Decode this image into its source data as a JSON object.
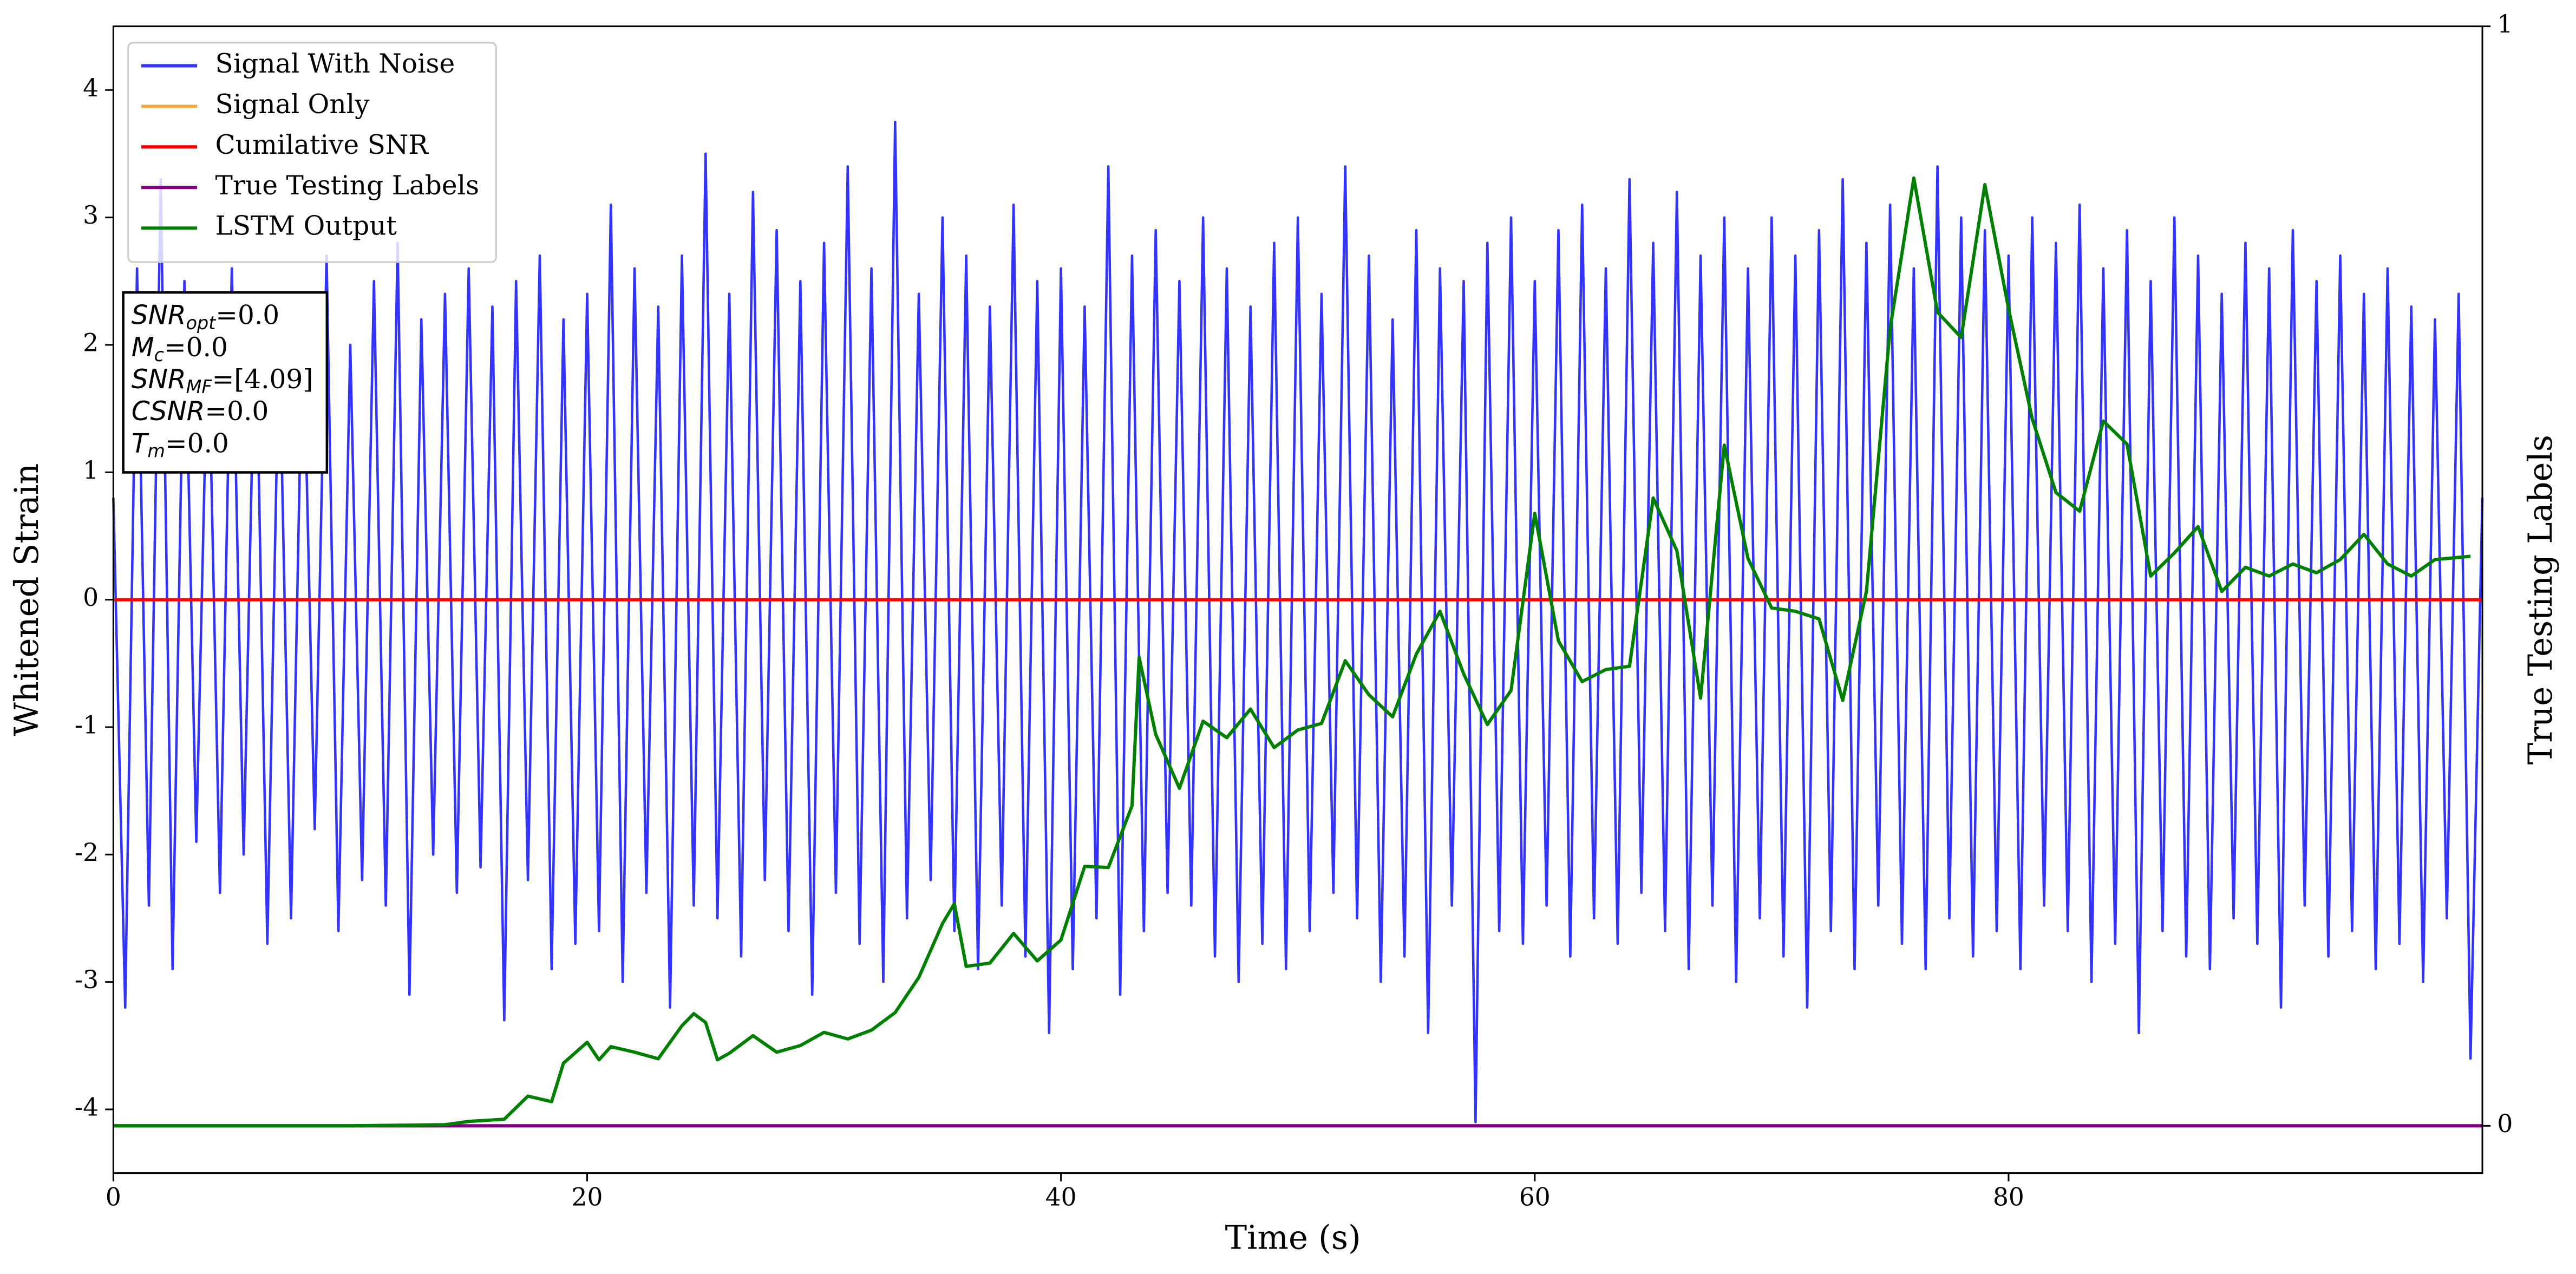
{
  "chart_data": {
    "type": "line",
    "xlabel": "Time (s)",
    "ylabel": "Whitened Strain",
    "y2label": "True Testing Labels",
    "xlim": [
      0,
      100
    ],
    "ylim": [
      -4.5,
      4.5
    ],
    "y2lim": [
      -0.043,
      1
    ],
    "xticks": [
      0,
      20,
      40,
      60,
      80
    ],
    "yticks": [
      -4,
      -3,
      -2,
      -1,
      0,
      1,
      2,
      3,
      4
    ],
    "y2ticks": [
      0,
      1
    ],
    "legend": "upper left",
    "series": [
      {
        "name": "Signal With Noise",
        "color": "#3333ff",
        "x": [
          0,
          0.5,
          1,
          1.5,
          2,
          2.5,
          3,
          3.5,
          4,
          4.5,
          5,
          5.5,
          6,
          6.5,
          7,
          7.5,
          8,
          8.5,
          9,
          9.5,
          10,
          10.5,
          11,
          11.5,
          12,
          12.5,
          13,
          13.5,
          14,
          14.5,
          15,
          15.5,
          16,
          16.5,
          17,
          17.5,
          18,
          18.5,
          19,
          19.5,
          20,
          20.5,
          21,
          21.5,
          22,
          22.5,
          23,
          23.5,
          24,
          24.5,
          25,
          25.5,
          26,
          26.5,
          27,
          27.5,
          28,
          28.5,
          29,
          29.5,
          30,
          30.5,
          31,
          31.5,
          32,
          32.5,
          33,
          33.5,
          34,
          34.5,
          35,
          35.5,
          36,
          36.5,
          37,
          37.5,
          38,
          38.5,
          39,
          39.5,
          40,
          40.5,
          41,
          41.5,
          42,
          42.5,
          43,
          43.5,
          44,
          44.5,
          45,
          45.5,
          46,
          46.5,
          47,
          47.5,
          48,
          48.5,
          49,
          49.5,
          50,
          50.5,
          51,
          51.5,
          52,
          52.5,
          53,
          53.5,
          54,
          54.5,
          55,
          55.5,
          56,
          56.5,
          57,
          57.5,
          58,
          58.5,
          59,
          59.5,
          60,
          60.5,
          61,
          61.5,
          62,
          62.5,
          63,
          63.5,
          64,
          64.5,
          65,
          65.5,
          66,
          66.5,
          67,
          67.5,
          68,
          68.5,
          69,
          69.5,
          70,
          70.5,
          71,
          71.5,
          72,
          72.5,
          73,
          73.5,
          74,
          74.5,
          75,
          75.5,
          76,
          76.5,
          77,
          77.5,
          78,
          78.5,
          79,
          79.5,
          80,
          80.5,
          81,
          81.5,
          82,
          82.5,
          83,
          83.5,
          84,
          84.5,
          85,
          85.5,
          86,
          86.5,
          87,
          87.5,
          88,
          88.5,
          89,
          89.5,
          90,
          90.5,
          91,
          91.5,
          92,
          92.5,
          93,
          93.5,
          94,
          94.5,
          95,
          95.5,
          96,
          96.5,
          97,
          97.5,
          98,
          98.5,
          99,
          99.5,
          100
        ],
        "values": [
          0.8,
          -3.2,
          2.6,
          -2.4,
          3.3,
          -2.9,
          2.5,
          -1.9,
          2.2,
          -2.3,
          2.6,
          -2.0,
          2.4,
          -2.7,
          2.1,
          -2.5,
          2.3,
          -1.8,
          2.7,
          -2.6,
          2.0,
          -2.2,
          2.5,
          -2.4,
          2.8,
          -3.1,
          2.2,
          -2.0,
          2.4,
          -2.3,
          2.6,
          -2.1,
          2.3,
          -3.3,
          2.5,
          -2.2,
          2.7,
          -2.9,
          2.2,
          -2.7,
          2.4,
          -2.6,
          3.1,
          -3.0,
          2.6,
          -2.3,
          2.3,
          -3.2,
          2.7,
          -2.4,
          3.5,
          -2.5,
          2.4,
          -2.8,
          3.2,
          -2.2,
          2.9,
          -2.6,
          2.5,
          -3.1,
          2.8,
          -2.3,
          3.4,
          -2.7,
          2.6,
          -3.0,
          3.75,
          -2.5,
          2.4,
          -2.2,
          3.0,
          -2.6,
          2.7,
          -2.9,
          2.3,
          -2.4,
          3.1,
          -2.8,
          2.5,
          -3.4,
          2.6,
          -2.9,
          2.3,
          -2.5,
          3.4,
          -3.1,
          2.7,
          -2.6,
          2.9,
          -2.3,
          2.5,
          -2.4,
          3.0,
          -2.8,
          2.6,
          -3.0,
          2.3,
          -2.7,
          2.8,
          -2.9,
          3.0,
          -2.6,
          2.4,
          -2.3,
          3.4,
          -2.5,
          2.7,
          -3.0,
          2.2,
          -2.8,
          2.9,
          -3.4,
          2.6,
          -2.4,
          2.5,
          -4.1,
          2.8,
          -2.6,
          3.0,
          -2.7,
          2.5,
          -2.4,
          2.9,
          -2.8,
          3.1,
          -2.5,
          2.6,
          -2.7,
          3.3,
          -2.3,
          2.8,
          -2.6,
          3.2,
          -2.9,
          2.7,
          -2.4,
          3.0,
          -3.0,
          2.6,
          -2.5,
          3.0,
          -2.8,
          2.7,
          -3.2,
          2.9,
          -2.6,
          3.3,
          -2.9,
          2.8,
          -2.4,
          3.1,
          -2.7,
          2.6,
          -2.9,
          3.4,
          -2.5,
          3.0,
          -2.8,
          2.9,
          -2.6,
          2.7,
          -2.9,
          3.0,
          -2.4,
          2.8,
          -2.6,
          3.1,
          -3.0,
          2.6,
          -2.7,
          2.9,
          -3.4,
          2.5,
          -2.6,
          3.0,
          -2.8,
          2.7,
          -2.9,
          2.4,
          -2.5,
          2.8,
          -2.7,
          2.6,
          -3.2,
          2.9,
          -2.4,
          2.5,
          -2.8,
          2.7,
          -2.6,
          2.4,
          -2.9,
          2.6,
          -2.7,
          2.3,
          -3.0,
          2.2,
          -2.5,
          2.4,
          -3.6,
          0.8
        ]
      },
      {
        "name": "Signal Only",
        "color": "#f5a742",
        "x": [
          0,
          100
        ],
        "values": [
          0,
          0
        ]
      },
      {
        "name": "Cumilative SNR",
        "color": "#ff0000",
        "x": [
          0,
          100
        ],
        "values": [
          0,
          0
        ]
      },
      {
        "name": "True Testing Labels",
        "color": "#800080",
        "axis": "y2",
        "x": [
          0,
          100
        ],
        "values": [
          0,
          0
        ]
      },
      {
        "name": "LSTM Output",
        "color": "#008000",
        "axis": "y2",
        "x": [
          0,
          10,
          14,
          15,
          16.5,
          17.5,
          18.5,
          19,
          20,
          20.5,
          21,
          22,
          23,
          24,
          24.5,
          25,
          25.5,
          26,
          27,
          28,
          29,
          30,
          31,
          32,
          33,
          34,
          35,
          35.5,
          36,
          37,
          38,
          39,
          40,
          41,
          42,
          43,
          43.3,
          44,
          45,
          46,
          47,
          48,
          49,
          50,
          51,
          52,
          53,
          54,
          55,
          56,
          57,
          58,
          59,
          60,
          61,
          62,
          63,
          64,
          65,
          66,
          67,
          68,
          69,
          70,
          71,
          72,
          73,
          74,
          75,
          76,
          77,
          78,
          79,
          80,
          81,
          82,
          83,
          84,
          85,
          86,
          87,
          88,
          89,
          90,
          91,
          92,
          93,
          94,
          95,
          96,
          97,
          98,
          99.5
        ],
        "values": [
          0,
          0,
          0.001,
          0.004,
          0.006,
          0.027,
          0.022,
          0.057,
          0.076,
          0.06,
          0.072,
          0.067,
          0.061,
          0.091,
          0.102,
          0.094,
          0.06,
          0.066,
          0.082,
          0.067,
          0.073,
          0.085,
          0.079,
          0.087,
          0.103,
          0.135,
          0.184,
          0.202,
          0.145,
          0.148,
          0.175,
          0.15,
          0.169,
          0.236,
          0.235,
          0.291,
          0.426,
          0.356,
          0.307,
          0.368,
          0.353,
          0.379,
          0.344,
          0.36,
          0.366,
          0.423,
          0.392,
          0.372,
          0.429,
          0.468,
          0.411,
          0.365,
          0.396,
          0.557,
          0.441,
          0.404,
          0.415,
          0.418,
          0.571,
          0.523,
          0.389,
          0.619,
          0.516,
          0.471,
          0.468,
          0.461,
          0.387,
          0.486,
          0.725,
          0.862,
          0.74,
          0.717,
          0.856,
          0.743,
          0.643,
          0.576,
          0.559,
          0.641,
          0.62,
          0.5,
          0.521,
          0.545,
          0.486,
          0.508,
          0.5,
          0.511,
          0.503,
          0.515,
          0.538,
          0.511,
          0.5,
          0.515,
          0.518
        ]
      }
    ],
    "annotation": [
      {
        "name": "SNR",
        "sub": "opt",
        "text": "=0.0"
      },
      {
        "name": "M",
        "sub": "c",
        "text": "=0.0"
      },
      {
        "name": "SNR",
        "sub": "MF",
        "text": "=[4.09]"
      },
      {
        "name": "CSNR",
        "text": "=0.0"
      },
      {
        "name": "T",
        "sub": "m",
        "text": "=0.0"
      }
    ]
  }
}
